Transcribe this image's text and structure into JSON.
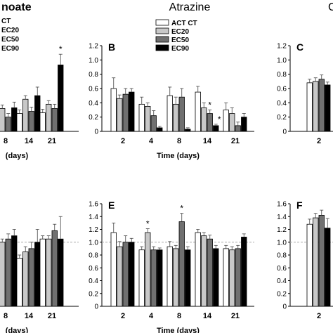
{
  "figure": {
    "title_left": "noate",
    "title_center": "Atrazine",
    "title_right": "C",
    "legend_left": [
      "CT",
      "EC20",
      "EC50",
      "EC90"
    ],
    "legend_center": [
      "ACT CT",
      "EC20",
      "EC50",
      "EC90"
    ],
    "series_colors": [
      "#ffffff",
      "#c8c8c8",
      "#707070",
      "#000000"
    ],
    "series_labels": [
      "CT",
      "EC20",
      "EC50",
      "EC90"
    ]
  },
  "chart_data": [
    {
      "id": "A",
      "panel_letter": "",
      "type": "bar",
      "categories": [
        "8",
        "14",
        "21"
      ],
      "xlabel": "(days)",
      "ylim": [
        0,
        1.2
      ],
      "yticks": [],
      "reference_line": null,
      "clipped_left": true,
      "series": [
        {
          "name": "CT",
          "values": [
            0.2,
            0.25,
            0.26
          ],
          "errors": [
            0.05,
            0.05,
            0.05
          ]
        },
        {
          "name": "EC20",
          "values": [
            0.32,
            0.45,
            0.38
          ],
          "errors": [
            0.05,
            0.05,
            0.05
          ]
        },
        {
          "name": "EC50",
          "values": [
            0.2,
            0.28,
            0.32
          ],
          "errors": [
            0.05,
            0.06,
            0.06
          ]
        },
        {
          "name": "EC90",
          "values": [
            0.33,
            0.5,
            0.93
          ],
          "errors": [
            0.08,
            0.12,
            0.15
          ]
        }
      ],
      "stars": [
        {
          "category": 2,
          "series": 3,
          "label": "*"
        }
      ]
    },
    {
      "id": "B",
      "panel_letter": "B",
      "type": "bar",
      "categories": [
        "2",
        "4",
        "8",
        "14",
        "21"
      ],
      "xlabel": "Time (days)",
      "ylim": [
        0,
        1.2
      ],
      "yticks": [
        "0",
        "0.2",
        "0.4",
        "0.6",
        "0.8",
        "1.0",
        "1.2"
      ],
      "reference_line": null,
      "clipped_left": false,
      "series": [
        {
          "name": "CT",
          "values": [
            0.6,
            0.38,
            0.5,
            0.55,
            0.3
          ],
          "errors": [
            0.15,
            0.1,
            0.12,
            0.08,
            0.1
          ]
        },
        {
          "name": "EC20",
          "values": [
            0.46,
            0.35,
            0.38,
            0.33,
            0.25
          ],
          "errors": [
            0.05,
            0.05,
            0.1,
            0.07,
            0.08
          ]
        },
        {
          "name": "EC50",
          "values": [
            0.52,
            0.22,
            0.48,
            0.25,
            0.08
          ],
          "errors": [
            0.08,
            0.07,
            0.12,
            0.05,
            0.05
          ]
        },
        {
          "name": "EC90",
          "values": [
            0.55,
            0.05,
            0.03,
            0.08,
            0.2
          ],
          "errors": [
            0.05,
            0.02,
            0.02,
            0.02,
            0.05
          ]
        }
      ],
      "stars": [
        {
          "category": 3,
          "series": 2,
          "label": "*"
        },
        {
          "category": 3,
          "series": 3,
          "label": "*"
        }
      ]
    },
    {
      "id": "C",
      "panel_letter": "C",
      "type": "bar",
      "categories": [
        "2"
      ],
      "xlabel": "",
      "ylim": [
        0,
        1.2
      ],
      "yticks": [
        "0",
        "0.2",
        "0.4",
        "0.6",
        "0.8",
        "1.0",
        "1.2"
      ],
      "reference_line": null,
      "clipped_left": false,
      "series": [
        {
          "name": "CT",
          "values": [
            0.68
          ],
          "errors": [
            0.05
          ]
        },
        {
          "name": "EC20",
          "values": [
            0.7
          ],
          "errors": [
            0.05
          ]
        },
        {
          "name": "EC50",
          "values": [
            0.73
          ],
          "errors": [
            0.06
          ]
        },
        {
          "name": "EC90",
          "values": [
            0.65
          ],
          "errors": [
            0.04
          ]
        }
      ],
      "stars": []
    },
    {
      "id": "D",
      "panel_letter": "",
      "type": "bar",
      "categories": [
        "8",
        "14",
        "21"
      ],
      "xlabel": "(days)",
      "ylim": [
        0,
        1.6
      ],
      "yticks": [],
      "reference_line": 1.0,
      "clipped_left": true,
      "series": [
        {
          "name": "CT",
          "values": [
            0.9,
            0.75,
            1.05
          ],
          "errors": [
            0.05,
            0.05,
            0.05
          ]
        },
        {
          "name": "EC20",
          "values": [
            1.0,
            0.85,
            1.05
          ],
          "errors": [
            0.05,
            0.08,
            0.05
          ]
        },
        {
          "name": "EC50",
          "values": [
            1.05,
            0.9,
            1.18
          ],
          "errors": [
            0.08,
            0.1,
            0.1
          ]
        },
        {
          "name": "EC90",
          "values": [
            1.1,
            1.0,
            1.05
          ],
          "errors": [
            0.1,
            0.2,
            0.35
          ]
        }
      ],
      "stars": []
    },
    {
      "id": "E",
      "panel_letter": "E",
      "type": "bar",
      "categories": [
        "2",
        "4",
        "8",
        "14",
        "21"
      ],
      "xlabel": "Time (days)",
      "ylim": [
        0,
        1.6
      ],
      "yticks": [
        "0",
        "0.2",
        "0.4",
        "0.6",
        "0.8",
        "1.0",
        "1.2",
        "1.4",
        "1.6"
      ],
      "reference_line": 1.0,
      "clipped_left": false,
      "series": [
        {
          "name": "CT",
          "values": [
            1.15,
            0.88,
            0.93,
            1.15,
            0.9
          ],
          "errors": [
            0.15,
            0.05,
            0.08,
            0.05,
            0.05
          ]
        },
        {
          "name": "EC20",
          "values": [
            0.93,
            1.15,
            0.9,
            1.1,
            0.88
          ],
          "errors": [
            0.08,
            0.06,
            0.05,
            0.05,
            0.05
          ]
        },
        {
          "name": "EC50",
          "values": [
            1.0,
            0.88,
            1.32,
            1.05,
            0.9
          ],
          "errors": [
            0.1,
            0.05,
            0.13,
            0.06,
            0.05
          ]
        },
        {
          "name": "EC90",
          "values": [
            1.0,
            0.88,
            0.88,
            0.9,
            1.08
          ],
          "errors": [
            0.06,
            0.03,
            0.05,
            0.05,
            0.05
          ]
        }
      ],
      "stars": [
        {
          "category": 1,
          "series": 1,
          "label": "*"
        },
        {
          "category": 2,
          "series": 2,
          "label": "*"
        }
      ]
    },
    {
      "id": "F",
      "panel_letter": "F",
      "type": "bar",
      "categories": [
        "2"
      ],
      "xlabel": "",
      "ylim": [
        0,
        1.6
      ],
      "yticks": [
        "0",
        "0.2",
        "0.4",
        "0.6",
        "0.8",
        "1.0",
        "1.2",
        "1.4",
        "1.6"
      ],
      "reference_line": 1.0,
      "clipped_left": false,
      "series": [
        {
          "name": "CT",
          "values": [
            1.28
          ],
          "errors": [
            0.08
          ]
        },
        {
          "name": "EC20",
          "values": [
            1.38
          ],
          "errors": [
            0.07
          ]
        },
        {
          "name": "EC50",
          "values": [
            1.42
          ],
          "errors": [
            0.08
          ]
        },
        {
          "name": "EC90",
          "values": [
            1.22
          ],
          "errors": [
            0.15
          ]
        }
      ],
      "stars": []
    }
  ]
}
